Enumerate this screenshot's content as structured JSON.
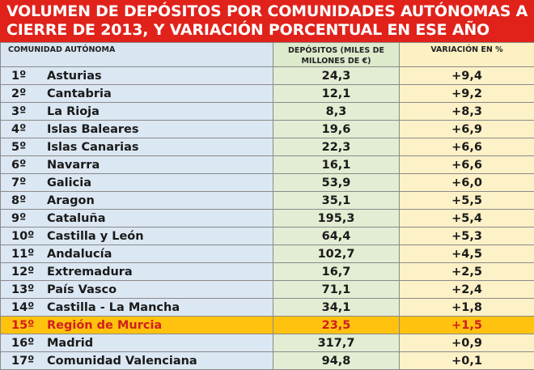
{
  "title": {
    "line1": "VOLUMEN DE DEPÓSITOS POR COMUNIDADES AUTÓNOMAS A",
    "line2": "CIERRE DE 2013, Y VARIACIÓN PORCENTUAL EN ESE AÑO"
  },
  "columns": {
    "community": "COMUNIDAD AUTÓNOMA",
    "deposits_line1": "DEPÓSITOS (MILES DE",
    "deposits_line2": "MILLONES DE €)",
    "variation": "VARIACIÓN EN %"
  },
  "rows": [
    {
      "rank": "1º",
      "name": "Asturias",
      "deposits": "24,3",
      "variation": "+9,4"
    },
    {
      "rank": "2º",
      "name": "Cantabria",
      "deposits": "12,1",
      "variation": "+9,2"
    },
    {
      "rank": "3º",
      "name": "La Rioja",
      "deposits": "8,3",
      "variation": "+8,3"
    },
    {
      "rank": "4º",
      "name": "Islas Baleares",
      "deposits": "19,6",
      "variation": "+6,9"
    },
    {
      "rank": "5º",
      "name": "Islas Canarias",
      "deposits": "22,3",
      "variation": "+6,6"
    },
    {
      "rank": "6º",
      "name": "Navarra",
      "deposits": "16,1",
      "variation": "+6,6"
    },
    {
      "rank": "7º",
      "name": "Galicia",
      "deposits": "53,9",
      "variation": "+6,0"
    },
    {
      "rank": "8º",
      "name": "Aragon",
      "deposits": "35,1",
      "variation": "+5,5"
    },
    {
      "rank": "9º",
      "name": "Cataluña",
      "deposits": "195,3",
      "variation": "+5,4"
    },
    {
      "rank": "10º",
      "name": "Castilla y León",
      "deposits": "64,4",
      "variation": "+5,3"
    },
    {
      "rank": "11º",
      "name": "Andalucía",
      "deposits": "102,7",
      "variation": "+4,5"
    },
    {
      "rank": "12º",
      "name": "Extremadura",
      "deposits": "16,7",
      "variation": "+2,5"
    },
    {
      "rank": "13º",
      "name": "País Vasco",
      "deposits": "71,1",
      "variation": "+2,4"
    },
    {
      "rank": "14º",
      "name": "Castilla - La Mancha",
      "deposits": "34,1",
      "variation": "+1,8"
    },
    {
      "rank": "15º",
      "name": "Región de Murcia",
      "deposits": "23,5",
      "variation": "+1,5",
      "highlight": true
    },
    {
      "rank": "16º",
      "name": "Madrid",
      "deposits": "317,7",
      "variation": "+0,9"
    },
    {
      "rank": "17º",
      "name": "Comunidad Valenciana",
      "deposits": "94,8",
      "variation": "+0,1"
    }
  ],
  "colors": {
    "title_bg": "#e0221b",
    "community_col": "#dbe7f3",
    "deposits_col": "#e2edd3",
    "variation_col": "#fdf1c7",
    "highlight_bg": "#ffc20e",
    "highlight_text": "#cf1f1f"
  }
}
